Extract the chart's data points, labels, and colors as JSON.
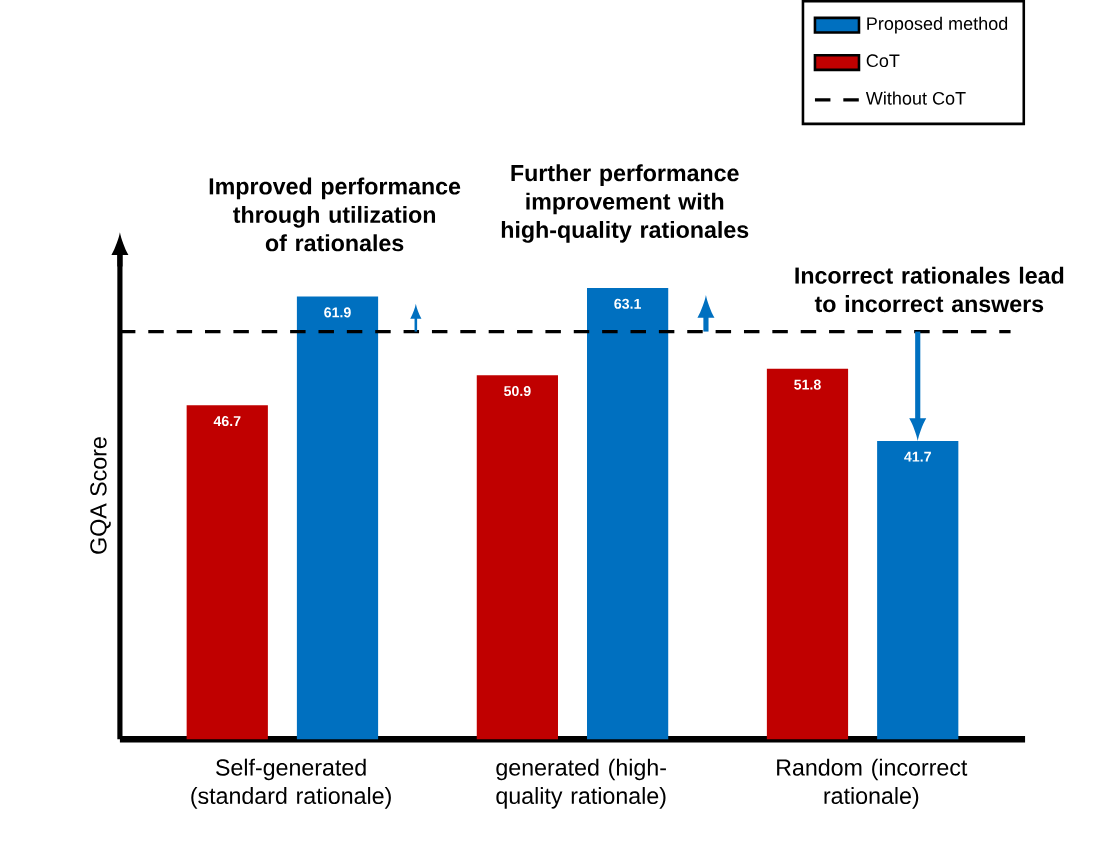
{
  "chart_data": {
    "type": "bar",
    "ylabel": "GQA Score",
    "categories": [
      "Self-generated (standard rationale)",
      "generated (high-quality rationale)",
      "Random (incorrect rationale)"
    ],
    "series": [
      {
        "name": "CoT",
        "color": "#c00000",
        "values": [
          46.7,
          50.9,
          51.8
        ]
      },
      {
        "name": "Proposed method",
        "color": "#0070c0",
        "values": [
          61.9,
          63.1,
          41.7
        ]
      }
    ],
    "data_labels": true,
    "tick_labels": "x",
    "legend": "top right",
    "ref_lines": [
      {
        "axis": "y",
        "value": 57,
        "label": "Without CoT",
        "color": "#000000",
        "line_style": "dashed"
      }
    ],
    "annotations": [
      "Improved performance through utilization of rationales",
      "Further performance improvement with high-quality rationales",
      "Incorrect rationales lead to incorrect answers"
    ]
  }
}
